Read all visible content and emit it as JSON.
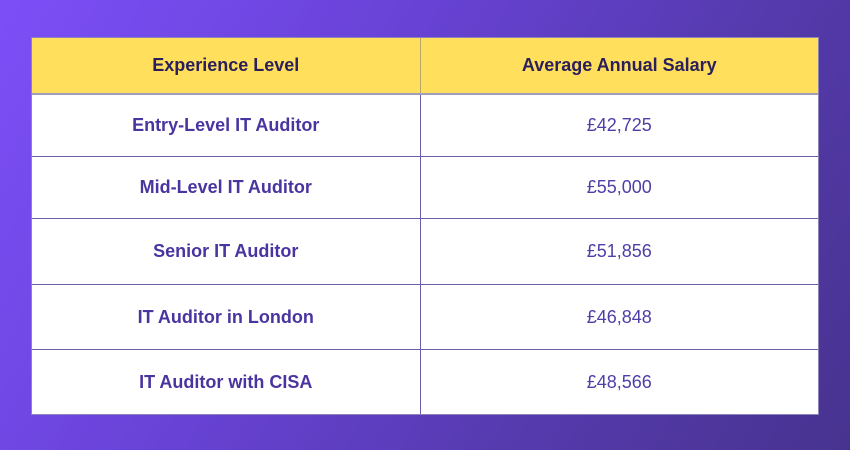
{
  "colors": {
    "background_gradient": [
      "#7c4ff7",
      "#47338f"
    ],
    "header_bg": "#ffdf5c",
    "header_text": "#2a1f5a",
    "cell_text": "#4a35a0",
    "grid_line": "#6a5fa8"
  },
  "table": {
    "headers": [
      "Experience Level",
      "Average Annual Salary"
    ],
    "rows": [
      {
        "level": "Entry-Level IT Auditor",
        "salary": "£42,725"
      },
      {
        "level": "Mid-Level IT Auditor",
        "salary": "£55,000"
      },
      {
        "level": "Senior IT Auditor",
        "salary": "£51,856"
      },
      {
        "level": "IT Auditor in London",
        "salary": "£46,848"
      },
      {
        "level": "IT Auditor with CISA",
        "salary": "£48,566"
      }
    ]
  }
}
